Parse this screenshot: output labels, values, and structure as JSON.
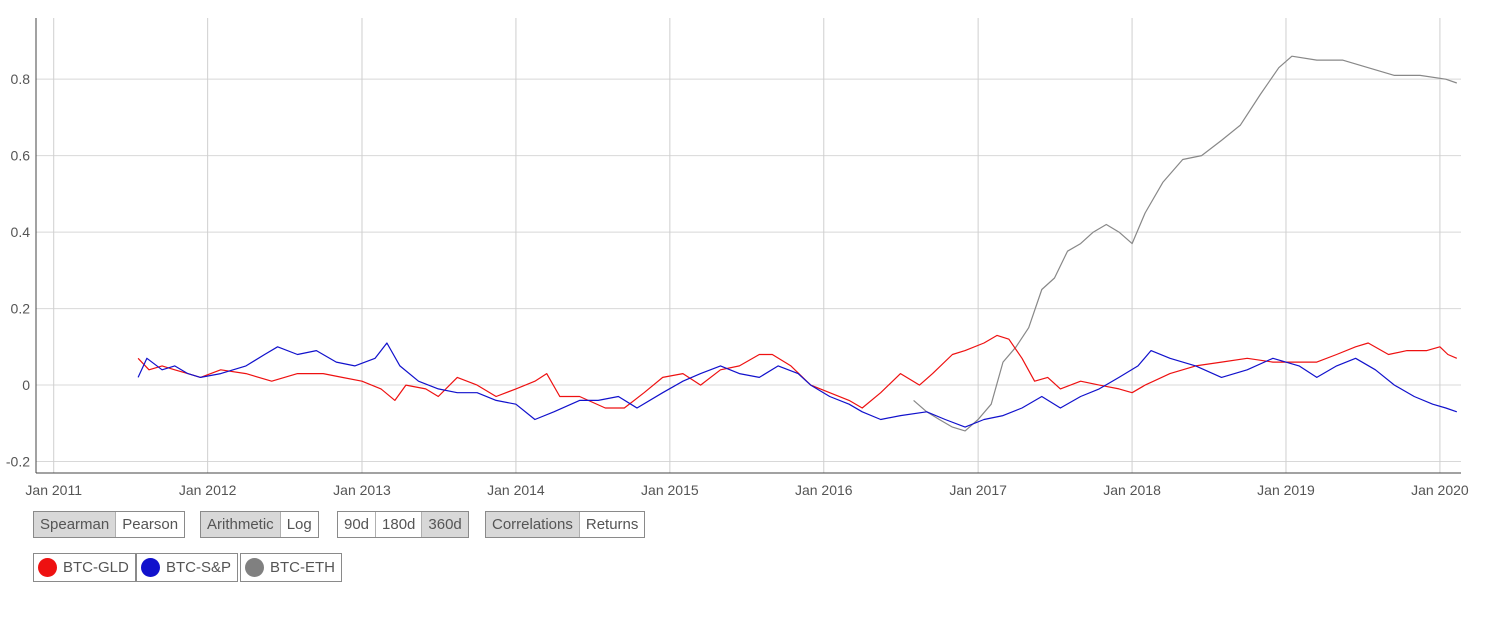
{
  "chart_data": {
    "type": "line",
    "title": "",
    "xlabel": "",
    "ylabel": "",
    "x_range": [
      "2010-11-20",
      "2020-02-20"
    ],
    "ylim": [
      -0.23,
      0.96
    ],
    "x_ticks": [
      {
        "date": "2011-01-01",
        "label": "Jan 2011"
      },
      {
        "date": "2012-01-01",
        "label": "Jan 2012"
      },
      {
        "date": "2013-01-01",
        "label": "Jan 2013"
      },
      {
        "date": "2014-01-01",
        "label": "Jan 2014"
      },
      {
        "date": "2015-01-01",
        "label": "Jan 2015"
      },
      {
        "date": "2016-01-01",
        "label": "Jan 2016"
      },
      {
        "date": "2017-01-01",
        "label": "Jan 2017"
      },
      {
        "date": "2018-01-01",
        "label": "Jan 2018"
      },
      {
        "date": "2019-01-01",
        "label": "Jan 2019"
      },
      {
        "date": "2020-01-01",
        "label": "Jan 2020"
      }
    ],
    "y_ticks": [
      {
        "value": -0.2,
        "label": "-0.2"
      },
      {
        "value": 0,
        "label": "0"
      },
      {
        "value": 0.2,
        "label": "0.2"
      },
      {
        "value": 0.4,
        "label": "0.4"
      },
      {
        "value": 0.6,
        "label": "0.6"
      },
      {
        "value": 0.8,
        "label": "0.8"
      }
    ],
    "grid": true,
    "legend_position": "bottom-left",
    "series": [
      {
        "name": "BTC-GLD",
        "color": "#ee1111",
        "points": [
          [
            "2011-07-20",
            0.07
          ],
          [
            "2011-08-15",
            0.04
          ],
          [
            "2011-09-15",
            0.05
          ],
          [
            "2011-10-15",
            0.04
          ],
          [
            "2011-11-15",
            0.03
          ],
          [
            "2011-12-15",
            0.02
          ],
          [
            "2012-02-01",
            0.04
          ],
          [
            "2012-04-01",
            0.03
          ],
          [
            "2012-06-01",
            0.01
          ],
          [
            "2012-08-01",
            0.03
          ],
          [
            "2012-10-01",
            0.03
          ],
          [
            "2012-11-15",
            0.02
          ],
          [
            "2013-01-01",
            0.01
          ],
          [
            "2013-02-15",
            -0.01
          ],
          [
            "2013-03-20",
            -0.04
          ],
          [
            "2013-04-15",
            0.0
          ],
          [
            "2013-06-01",
            -0.01
          ],
          [
            "2013-07-01",
            -0.03
          ],
          [
            "2013-08-15",
            0.02
          ],
          [
            "2013-10-01",
            0.0
          ],
          [
            "2013-11-15",
            -0.03
          ],
          [
            "2014-01-01",
            -0.01
          ],
          [
            "2014-02-15",
            0.01
          ],
          [
            "2014-03-15",
            0.03
          ],
          [
            "2014-04-15",
            -0.03
          ],
          [
            "2014-06-01",
            -0.03
          ],
          [
            "2014-08-01",
            -0.06
          ],
          [
            "2014-09-15",
            -0.06
          ],
          [
            "2014-11-01",
            -0.02
          ],
          [
            "2014-12-15",
            0.02
          ],
          [
            "2015-02-01",
            0.03
          ],
          [
            "2015-03-15",
            0.0
          ],
          [
            "2015-05-01",
            0.04
          ],
          [
            "2015-06-15",
            0.05
          ],
          [
            "2015-08-01",
            0.08
          ],
          [
            "2015-09-01",
            0.08
          ],
          [
            "2015-10-15",
            0.05
          ],
          [
            "2015-12-01",
            0.0
          ],
          [
            "2016-01-15",
            -0.02
          ],
          [
            "2016-03-01",
            -0.04
          ],
          [
            "2016-04-01",
            -0.06
          ],
          [
            "2016-05-15",
            -0.02
          ],
          [
            "2016-07-01",
            0.03
          ],
          [
            "2016-08-15",
            0.0
          ],
          [
            "2016-09-15",
            0.03
          ],
          [
            "2016-11-01",
            0.08
          ],
          [
            "2016-12-01",
            0.09
          ],
          [
            "2017-01-15",
            0.11
          ],
          [
            "2017-02-15",
            0.13
          ],
          [
            "2017-03-15",
            0.12
          ],
          [
            "2017-04-15",
            0.07
          ],
          [
            "2017-05-15",
            0.01
          ],
          [
            "2017-06-15",
            0.02
          ],
          [
            "2017-07-15",
            -0.01
          ],
          [
            "2017-09-01",
            0.01
          ],
          [
            "2017-10-15",
            0.0
          ],
          [
            "2017-12-01",
            -0.01
          ],
          [
            "2018-01-01",
            -0.02
          ],
          [
            "2018-02-01",
            0.0
          ],
          [
            "2018-04-01",
            0.03
          ],
          [
            "2018-06-01",
            0.05
          ],
          [
            "2018-08-01",
            0.06
          ],
          [
            "2018-10-01",
            0.07
          ],
          [
            "2018-12-01",
            0.06
          ],
          [
            "2019-02-01",
            0.06
          ],
          [
            "2019-03-15",
            0.06
          ],
          [
            "2019-05-01",
            0.08
          ],
          [
            "2019-06-15",
            0.1
          ],
          [
            "2019-07-15",
            0.11
          ],
          [
            "2019-09-01",
            0.08
          ],
          [
            "2019-10-15",
            0.09
          ],
          [
            "2019-12-01",
            0.09
          ],
          [
            "2020-01-01",
            0.1
          ],
          [
            "2020-01-20",
            0.08
          ],
          [
            "2020-02-10",
            0.07
          ]
        ]
      },
      {
        "name": "BTC-S&P",
        "color": "#1111cc",
        "points": [
          [
            "2011-07-20",
            0.02
          ],
          [
            "2011-08-10",
            0.07
          ],
          [
            "2011-09-15",
            0.04
          ],
          [
            "2011-10-15",
            0.05
          ],
          [
            "2011-11-15",
            0.03
          ],
          [
            "2011-12-15",
            0.02
          ],
          [
            "2012-02-01",
            0.03
          ],
          [
            "2012-04-01",
            0.05
          ],
          [
            "2012-05-15",
            0.08
          ],
          [
            "2012-06-15",
            0.1
          ],
          [
            "2012-08-01",
            0.08
          ],
          [
            "2012-09-15",
            0.09
          ],
          [
            "2012-11-01",
            0.06
          ],
          [
            "2012-12-15",
            0.05
          ],
          [
            "2013-02-01",
            0.07
          ],
          [
            "2013-03-01",
            0.11
          ],
          [
            "2013-04-01",
            0.05
          ],
          [
            "2013-05-15",
            0.01
          ],
          [
            "2013-07-01",
            -0.01
          ],
          [
            "2013-08-15",
            -0.02
          ],
          [
            "2013-10-01",
            -0.02
          ],
          [
            "2013-11-15",
            -0.04
          ],
          [
            "2014-01-01",
            -0.05
          ],
          [
            "2014-02-15",
            -0.09
          ],
          [
            "2014-04-01",
            -0.07
          ],
          [
            "2014-06-01",
            -0.04
          ],
          [
            "2014-07-15",
            -0.04
          ],
          [
            "2014-09-01",
            -0.03
          ],
          [
            "2014-10-15",
            -0.06
          ],
          [
            "2014-12-15",
            -0.02
          ],
          [
            "2015-02-01",
            0.01
          ],
          [
            "2015-03-15",
            0.03
          ],
          [
            "2015-05-01",
            0.05
          ],
          [
            "2015-06-15",
            0.03
          ],
          [
            "2015-08-01",
            0.02
          ],
          [
            "2015-09-15",
            0.05
          ],
          [
            "2015-11-01",
            0.03
          ],
          [
            "2015-12-01",
            0.0
          ],
          [
            "2016-01-15",
            -0.03
          ],
          [
            "2016-03-01",
            -0.05
          ],
          [
            "2016-04-01",
            -0.07
          ],
          [
            "2016-05-15",
            -0.09
          ],
          [
            "2016-07-01",
            -0.08
          ],
          [
            "2016-09-01",
            -0.07
          ],
          [
            "2016-10-15",
            -0.09
          ],
          [
            "2016-12-01",
            -0.11
          ],
          [
            "2017-01-15",
            -0.09
          ],
          [
            "2017-03-01",
            -0.08
          ],
          [
            "2017-04-15",
            -0.06
          ],
          [
            "2017-06-01",
            -0.03
          ],
          [
            "2017-07-15",
            -0.06
          ],
          [
            "2017-09-01",
            -0.03
          ],
          [
            "2017-10-15",
            -0.01
          ],
          [
            "2017-12-01",
            0.02
          ],
          [
            "2018-01-15",
            0.05
          ],
          [
            "2018-02-15",
            0.09
          ],
          [
            "2018-04-01",
            0.07
          ],
          [
            "2018-06-01",
            0.05
          ],
          [
            "2018-08-01",
            0.02
          ],
          [
            "2018-10-01",
            0.04
          ],
          [
            "2018-12-01",
            0.07
          ],
          [
            "2019-02-01",
            0.05
          ],
          [
            "2019-03-15",
            0.02
          ],
          [
            "2019-05-01",
            0.05
          ],
          [
            "2019-06-15",
            0.07
          ],
          [
            "2019-08-01",
            0.04
          ],
          [
            "2019-09-15",
            0.0
          ],
          [
            "2019-11-01",
            -0.03
          ],
          [
            "2019-12-15",
            -0.05
          ],
          [
            "2020-01-15",
            -0.06
          ],
          [
            "2020-02-10",
            -0.07
          ]
        ]
      },
      {
        "name": "BTC-ETH",
        "color": "#888888",
        "points": [
          [
            "2016-08-01",
            -0.04
          ],
          [
            "2016-09-01",
            -0.07
          ],
          [
            "2016-10-01",
            -0.09
          ],
          [
            "2016-11-01",
            -0.11
          ],
          [
            "2016-12-01",
            -0.12
          ],
          [
            "2017-01-01",
            -0.09
          ],
          [
            "2017-02-01",
            -0.05
          ],
          [
            "2017-03-01",
            0.06
          ],
          [
            "2017-04-01",
            0.1
          ],
          [
            "2017-05-01",
            0.15
          ],
          [
            "2017-06-01",
            0.25
          ],
          [
            "2017-07-01",
            0.28
          ],
          [
            "2017-08-01",
            0.35
          ],
          [
            "2017-09-01",
            0.37
          ],
          [
            "2017-10-01",
            0.4
          ],
          [
            "2017-11-01",
            0.42
          ],
          [
            "2017-12-01",
            0.4
          ],
          [
            "2018-01-01",
            0.37
          ],
          [
            "2018-02-01",
            0.45
          ],
          [
            "2018-03-15",
            0.53
          ],
          [
            "2018-05-01",
            0.59
          ],
          [
            "2018-06-15",
            0.6
          ],
          [
            "2018-08-01",
            0.64
          ],
          [
            "2018-09-15",
            0.68
          ],
          [
            "2018-11-01",
            0.76
          ],
          [
            "2018-12-15",
            0.83
          ],
          [
            "2019-01-15",
            0.86
          ],
          [
            "2019-03-15",
            0.85
          ],
          [
            "2019-05-15",
            0.85
          ],
          [
            "2019-07-15",
            0.83
          ],
          [
            "2019-09-15",
            0.81
          ],
          [
            "2019-11-15",
            0.81
          ],
          [
            "2020-01-15",
            0.8
          ],
          [
            "2020-02-10",
            0.79
          ]
        ]
      }
    ]
  },
  "controls": {
    "method": {
      "options": [
        "Spearman",
        "Pearson"
      ],
      "selected": "Spearman"
    },
    "scale": {
      "options": [
        "Arithmetic",
        "Log"
      ],
      "selected": "Arithmetic"
    },
    "window": {
      "options": [
        "90d",
        "180d",
        "360d"
      ],
      "selected": "360d"
    },
    "view": {
      "options": [
        "Correlations",
        "Returns"
      ],
      "selected": "Correlations"
    }
  },
  "legend": [
    {
      "label": "BTC-GLD",
      "color": "#ee1111"
    },
    {
      "label": "BTC-S&P",
      "color": "#1111cc"
    },
    {
      "label": "BTC-ETH",
      "color": "#888888"
    }
  ]
}
